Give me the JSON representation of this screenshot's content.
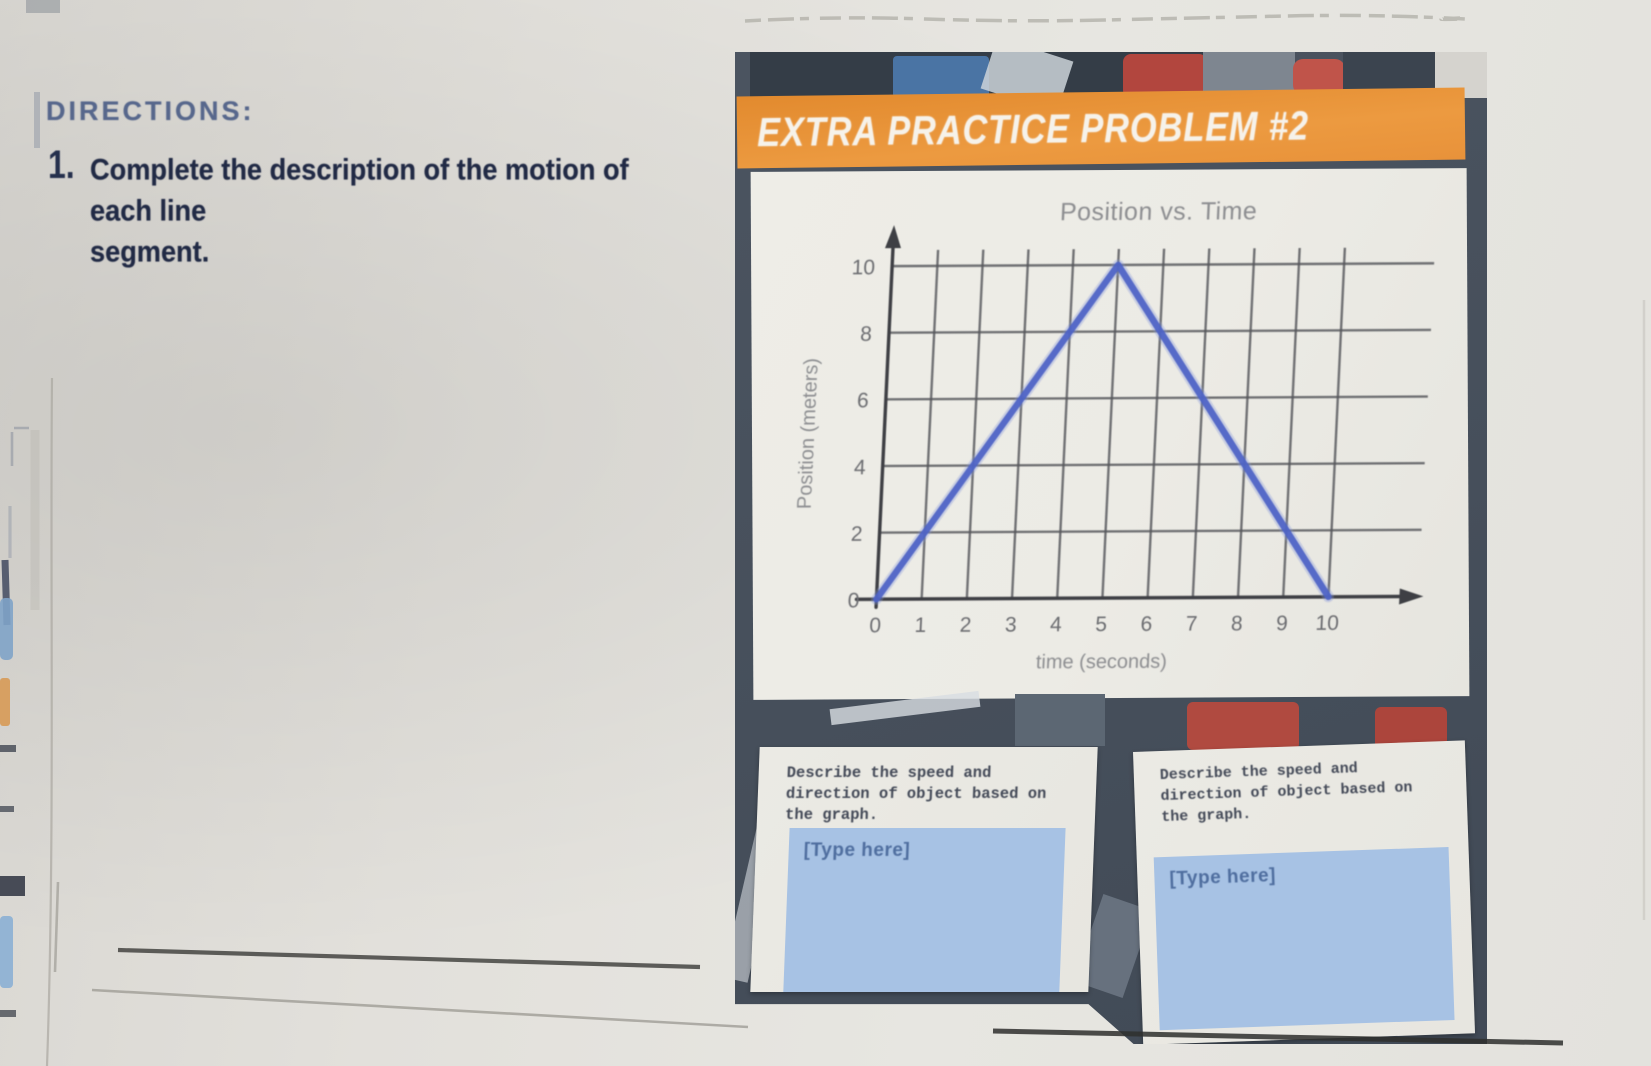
{
  "worksheet": {
    "directions_heading": "DIRECTIONS:",
    "item_number": "1.",
    "item_text_line1": "Complete the description of the motion of each line",
    "item_text_line2": "segment."
  },
  "slide": {
    "banner_title": "EXTRA PRACTICE PROBLEM #2",
    "cards": [
      {
        "prompt_line1": "Describe the speed and",
        "prompt_line2": "direction of object based on",
        "prompt_line3": "the graph.",
        "answer_placeholder": "[Type here]"
      },
      {
        "prompt_line1": "Describe the speed and",
        "prompt_line2": "direction of object based on",
        "prompt_line3": "the graph.",
        "answer_placeholder": "[Type here]"
      }
    ]
  },
  "chart_data": {
    "type": "line",
    "title": "Position vs. Time",
    "xlabel": "time (seconds)",
    "ylabel": "Position (meters)",
    "xlim": [
      0,
      10
    ],
    "ylim": [
      0,
      10
    ],
    "x_ticks": [
      0,
      1,
      2,
      3,
      4,
      5,
      6,
      7,
      8,
      9,
      10
    ],
    "y_ticks": [
      0,
      2,
      4,
      6,
      8,
      10
    ],
    "grid": true,
    "legend": false,
    "series": [
      {
        "name": "position",
        "x": [
          0,
          5,
          10
        ],
        "y": [
          0,
          10,
          0
        ]
      }
    ],
    "line_color": "#4d63c6"
  },
  "colors": {
    "banner_orange": "#e8923a",
    "data_line_blue": "#4d63c6",
    "answer_box_blue": "#a7c2e4",
    "photo_background": "#47505c",
    "heading_blue": "#57678c"
  }
}
